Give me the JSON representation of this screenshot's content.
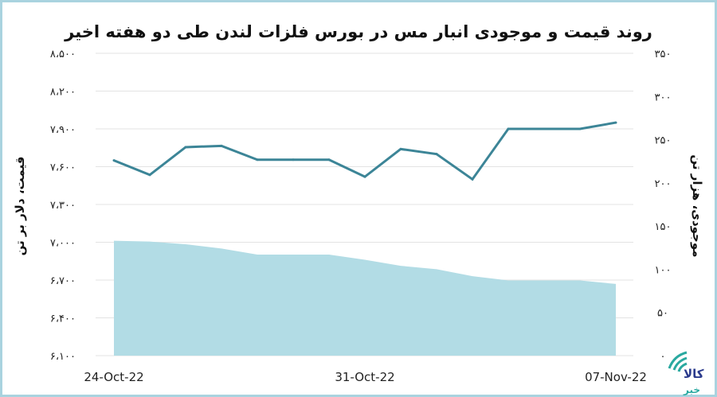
{
  "chart_data": {
    "type": "line+area",
    "title": "روند قیمت و موجودی انبار مس در بورس فلزات لندن طی دو هفته اخیر",
    "x": [
      "24-Oct-22",
      "25-Oct-22",
      "26-Oct-22",
      "27-Oct-22",
      "28-Oct-22",
      "29-Oct-22",
      "30-Oct-22",
      "31-Oct-22",
      "01-Nov-22",
      "02-Nov-22",
      "03-Nov-22",
      "04-Nov-22",
      "05-Nov-22",
      "06-Nov-22",
      "07-Nov-22"
    ],
    "x_tick_labels": [
      "24-Oct-22",
      "31-Oct-22",
      "07-Nov-22"
    ],
    "y_left": {
      "label": "قیمت، دلار بر تن",
      "range": [
        6100,
        8500
      ],
      "ticks": [
        "۸،۵۰۰",
        "۸،۲۰۰",
        "۷،۹۰۰",
        "۷،۶۰۰",
        "۷،۳۰۰",
        "۷،۰۰۰",
        "۶،۷۰۰",
        "۶،۴۰۰",
        "۶،۱۰۰"
      ]
    },
    "y_right": {
      "label": "موجودی، هزار تن",
      "range": [
        0,
        350
      ],
      "ticks": [
        "۳۵۰",
        "۳۰۰",
        "۲۵۰",
        "۲۰۰",
        "۱۵۰",
        "۱۰۰",
        "۵۰",
        "۰"
      ]
    },
    "grid": true,
    "series": [
      {
        "type": "line",
        "axis": "left",
        "color": "#3c8597",
        "values": [
          7650,
          7535,
          7755,
          7765,
          7655,
          7655,
          7655,
          7520,
          7740,
          7700,
          7500,
          7900,
          7900,
          7900,
          7950
        ]
      },
      {
        "type": "area",
        "axis": "right",
        "color": "#b2dce5",
        "values": [
          133,
          132,
          129,
          124,
          117,
          117,
          117,
          111,
          104,
          100,
          92,
          87,
          87,
          87,
          83
        ]
      }
    ]
  },
  "logo": {
    "text": "کالا خبر",
    "colors": [
      "#2aa9a0",
      "#2a3a8c"
    ]
  }
}
